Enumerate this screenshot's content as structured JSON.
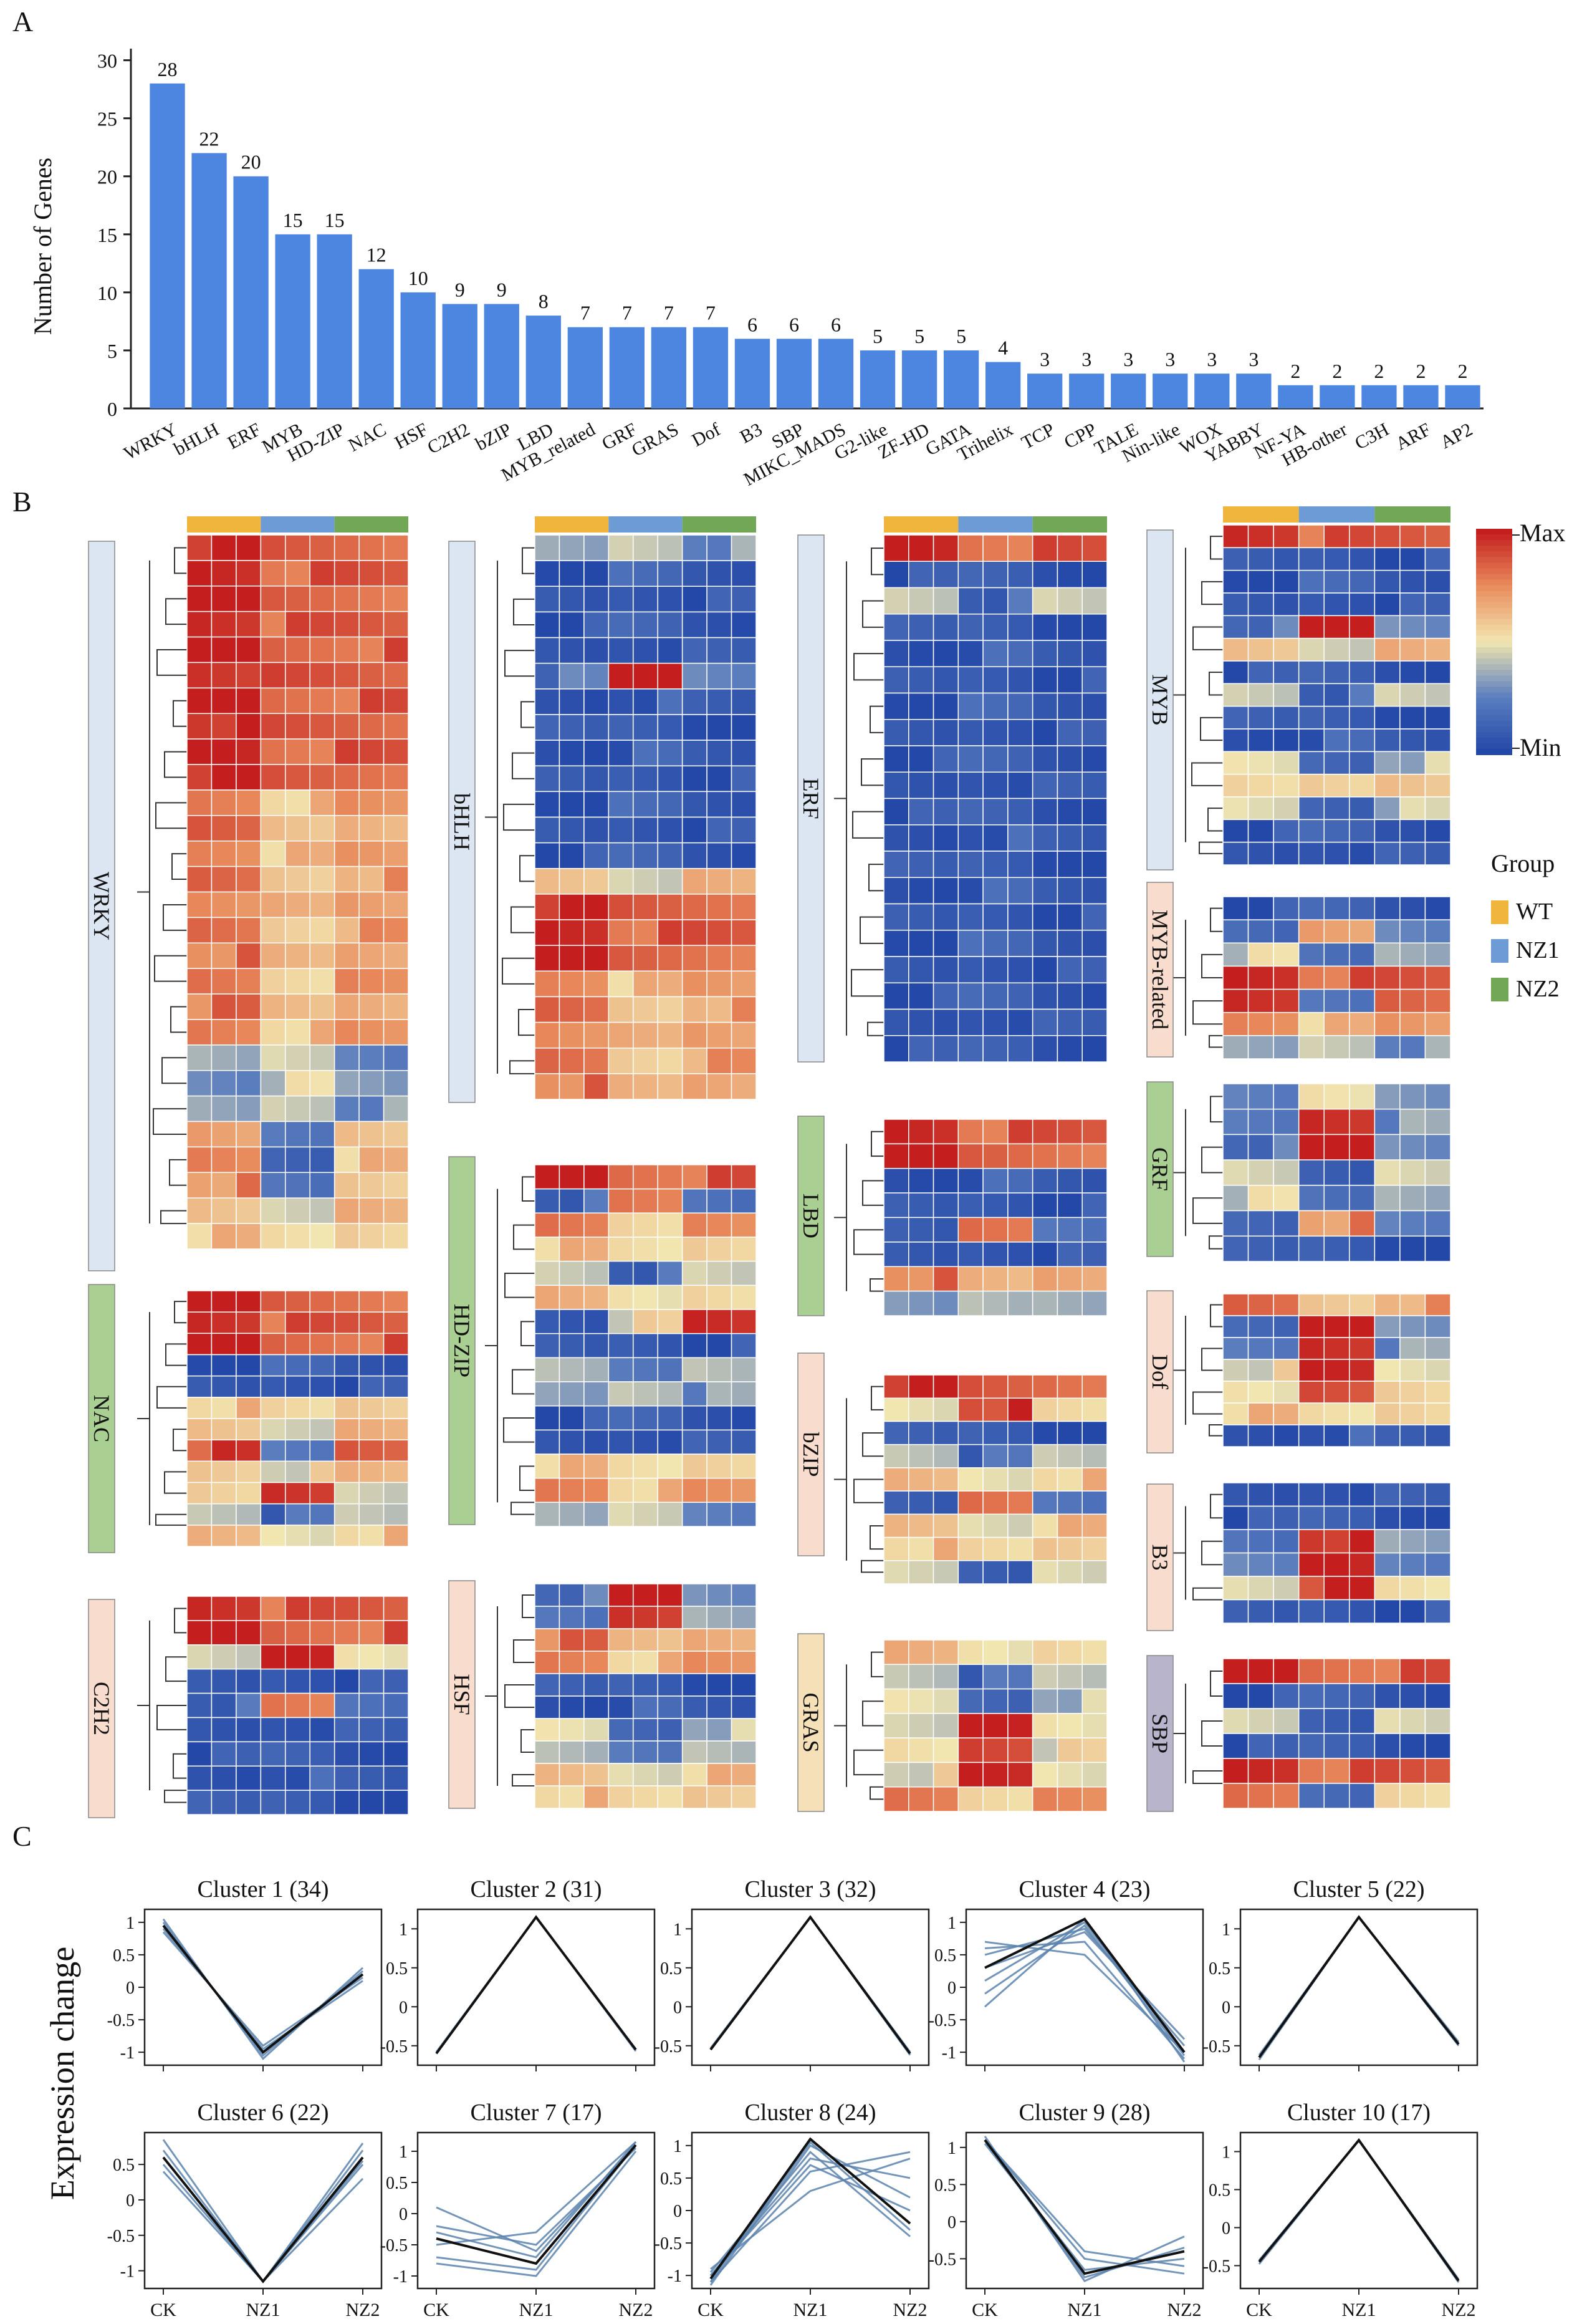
{
  "colors": {
    "bar": "#4d86e0",
    "axis": "#222222",
    "min": "#2448a8",
    "low": "#5c7fbf",
    "mid": "#f2e6b0",
    "high": "#e98c5d",
    "max": "#c41e1e",
    "wt": "#f0b53c",
    "nz1": "#6d9bd6",
    "nz2": "#72a855",
    "panel_gold": "#f6c98e",
    "label_blue": "#dce6f3",
    "label_green": "#a9cf93",
    "label_salmon": "#f8dccd",
    "label_tan": "#f5e0b8",
    "label_purple": "#b7b4cc",
    "trace": "#5a83ad",
    "centroid": "#111111"
  },
  "panels": {
    "a": "A",
    "b": "B",
    "c": "C"
  },
  "chart_data": [
    {
      "type": "bar",
      "title": "",
      "ylabel": "Number of Genes",
      "xlabel": "",
      "ylim": [
        0,
        31
      ],
      "yticks": [
        0,
        5,
        10,
        15,
        20,
        25,
        30
      ],
      "categories": [
        "WRKY",
        "bHLH",
        "ERF",
        "MYB",
        "HD-ZIP",
        "NAC",
        "HSF",
        "C2H2",
        "bZIP",
        "LBD",
        "MYB_related",
        "GRF",
        "GRAS",
        "Dof",
        "B3",
        "SBP",
        "MIKC_MADS",
        "G2-like",
        "ZF-HD",
        "GATA",
        "Trihelix",
        "TCP",
        "CPP",
        "TALE",
        "Nin-like",
        "WOX",
        "YABBY",
        "NF-YA",
        "HB-other",
        "C3H",
        "ARF",
        "AP2"
      ],
      "values": [
        28,
        22,
        20,
        15,
        15,
        12,
        10,
        9,
        9,
        8,
        7,
        7,
        7,
        7,
        6,
        6,
        6,
        5,
        5,
        5,
        4,
        3,
        3,
        3,
        3,
        3,
        3,
        2,
        2,
        2,
        2,
        2
      ]
    },
    {
      "type": "heatmap",
      "scale_labels": {
        "max": "Max",
        "min": "Min"
      },
      "group_legend_title": "Group",
      "groups": [
        "WT",
        "NZ1",
        "NZ2"
      ],
      "families": [
        "WRKY",
        "bHLH",
        "ERF",
        "MYB",
        "MYB-related",
        "NAC",
        "HD-ZIP",
        "LBD",
        "GRF",
        "bZIP",
        "Dof",
        "B3",
        "C2H2",
        "HSF",
        "GRAS",
        "SBP"
      ],
      "value_scale": [
        0,
        1
      ],
      "rows_per_family": [
        28,
        22,
        20,
        15,
        7,
        12,
        15,
        8,
        7,
        9,
        7,
        6,
        9,
        10,
        7,
        6
      ],
      "patterns": [
        [
          1.0,
          1.0,
          1.0,
          0.85,
          0.85,
          0.85,
          0.85,
          0.85,
          0.85
        ],
        [
          0.8,
          0.8,
          0.8,
          0.6,
          0.6,
          0.6,
          0.7,
          0.7,
          0.7
        ],
        [
          0.3,
          0.3,
          0.3,
          0.45,
          0.45,
          0.45,
          0.3,
          0.3,
          0.3
        ],
        [
          0.05,
          0.05,
          0.05,
          0.1,
          0.1,
          0.1,
          0.05,
          0.05,
          0.05
        ],
        [
          0.6,
          0.6,
          0.6,
          0.5,
          0.5,
          0.5,
          0.6,
          0.6,
          0.6
        ],
        [
          0.75,
          0.75,
          0.75,
          0.15,
          0.15,
          0.15,
          0.6,
          0.6,
          0.6
        ],
        [
          0.45,
          0.45,
          0.45,
          0.15,
          0.15,
          0.15,
          0.4,
          0.4,
          0.4
        ],
        [
          0.15,
          0.15,
          0.15,
          0.75,
          0.75,
          0.75,
          0.2,
          0.2,
          0.2
        ],
        [
          0.2,
          0.2,
          0.2,
          1.0,
          1.0,
          1.0,
          0.3,
          0.3,
          0.3
        ],
        [
          0.5,
          0.5,
          0.5,
          0.95,
          0.95,
          0.95,
          0.5,
          0.5,
          0.5
        ],
        [
          0.9,
          0.9,
          0.9,
          0.2,
          0.2,
          0.2,
          0.9,
          0.9,
          0.9
        ],
        [
          0.1,
          0.1,
          0.1,
          0.5,
          0.5,
          0.5,
          0.95,
          0.95,
          0.95
        ]
      ],
      "matrices": [
        [
          0,
          0,
          0,
          0,
          0,
          0,
          0,
          0,
          0,
          0,
          1,
          1,
          1,
          1,
          1,
          1,
          1,
          1,
          1,
          1,
          2,
          2,
          2,
          5,
          5,
          5,
          4,
          4
        ],
        [
          2,
          3,
          3,
          3,
          3,
          8,
          3,
          3,
          3,
          3,
          3,
          3,
          3,
          4,
          0,
          0,
          0,
          1,
          1,
          1,
          1,
          1
        ],
        [
          0,
          3,
          6,
          3,
          3,
          3,
          3,
          3,
          3,
          3,
          3,
          3,
          3,
          3,
          3,
          3,
          3,
          3,
          3,
          3
        ],
        [
          0,
          3,
          3,
          3,
          8,
          4,
          3,
          6,
          3,
          3,
          6,
          4,
          6,
          3,
          3
        ],
        [
          3,
          7,
          6,
          0,
          10,
          1,
          2
        ],
        [
          0,
          0,
          0,
          3,
          3,
          4,
          4,
          10,
          4,
          9,
          6,
          4
        ],
        [
          0,
          7,
          1,
          4,
          6,
          4,
          11,
          3,
          6,
          2,
          3,
          3,
          4,
          1,
          2
        ],
        [
          0,
          0,
          3,
          3,
          7,
          3,
          1,
          2
        ],
        [
          2,
          8,
          8,
          6,
          6,
          7,
          3
        ],
        [
          0,
          9,
          3,
          6,
          4,
          7,
          4,
          4,
          6
        ],
        [
          1,
          8,
          8,
          9,
          9,
          4,
          3
        ],
        [
          3,
          3,
          8,
          8,
          9,
          3
        ],
        [
          0,
          0,
          9,
          3,
          7,
          3,
          3,
          3,
          3
        ],
        [
          8,
          8,
          1,
          1,
          3,
          3,
          6,
          6,
          4,
          4
        ],
        [
          4,
          6,
          6,
          9,
          9,
          9,
          1
        ],
        [
          0,
          3,
          6,
          3,
          0,
          5
        ]
      ]
    },
    {
      "type": "line",
      "ylabel": "Expression change",
      "x": [
        "CK",
        "NZ1",
        "NZ2"
      ],
      "series": [
        {
          "name": "Cluster 1 (34)",
          "yticks": [
            1,
            0.5,
            0,
            -0.5,
            -1
          ],
          "ylim": [
            -1.2,
            1.2
          ],
          "centroid": [
            0.95,
            -1.0,
            0.2
          ],
          "traces": [
            [
              1.05,
              -1.1,
              0.3
            ],
            [
              0.9,
              -0.95,
              0.1
            ],
            [
              1.0,
              -1.05,
              0.25
            ],
            [
              0.85,
              -0.9,
              0.15
            ]
          ]
        },
        {
          "name": "Cluster 2 (31)",
          "yticks": [
            1,
            0.5,
            0,
            -0.5
          ],
          "ylim": [
            -0.75,
            1.25
          ],
          "centroid": [
            -0.6,
            1.15,
            -0.55
          ],
          "traces": [
            [
              -0.58,
              1.15,
              -0.57
            ],
            [
              -0.6,
              1.15,
              -0.55
            ]
          ]
        },
        {
          "name": "Cluster 3 (32)",
          "yticks": [
            1,
            0.5,
            0,
            -0.5
          ],
          "ylim": [
            -0.75,
            1.25
          ],
          "centroid": [
            -0.55,
            1.15,
            -0.6
          ],
          "traces": [
            [
              -0.55,
              1.15,
              -0.62
            ],
            [
              -0.53,
              1.15,
              -0.58
            ]
          ]
        },
        {
          "name": "Cluster 4 (23)",
          "yticks": [
            1,
            0.5,
            0,
            -0.5,
            -1
          ],
          "ylim": [
            -1.2,
            1.2
          ],
          "centroid": [
            0.3,
            1.05,
            -1.0
          ],
          "traces": [
            [
              0.7,
              0.5,
              -1.0
            ],
            [
              0.6,
              0.7,
              -1.1
            ],
            [
              0.5,
              0.9,
              -0.9
            ],
            [
              0.1,
              1.0,
              -1.0
            ],
            [
              -0.3,
              1.05,
              -1.15
            ],
            [
              0.3,
              0.85,
              -0.8
            ],
            [
              -0.1,
              0.95,
              -1.05
            ]
          ]
        },
        {
          "name": "Cluster 5 (22)",
          "yticks": [
            1,
            0.5,
            0,
            -0.5
          ],
          "ylim": [
            -0.75,
            1.25
          ],
          "centroid": [
            -0.65,
            1.15,
            -0.48
          ],
          "traces": [
            [
              -0.68,
              1.15,
              -0.45
            ],
            [
              -0.62,
              1.15,
              -0.5
            ]
          ]
        },
        {
          "name": "Cluster 6 (22)",
          "yticks": [
            0.5,
            0,
            -0.5,
            -1
          ],
          "ylim": [
            -1.25,
            0.95
          ],
          "centroid": [
            0.6,
            -1.15,
            0.6
          ],
          "traces": [
            [
              0.85,
              -1.15,
              0.8
            ],
            [
              0.7,
              -1.15,
              0.7
            ],
            [
              0.5,
              -1.15,
              0.5
            ],
            [
              0.4,
              -1.15,
              0.3
            ],
            [
              0.6,
              -1.15,
              0.55
            ]
          ]
        },
        {
          "name": "Cluster 7 (17)",
          "yticks": [
            1,
            0.5,
            0,
            -0.5,
            -1
          ],
          "ylim": [
            -1.2,
            1.3
          ],
          "centroid": [
            -0.4,
            -0.8,
            1.1
          ],
          "traces": [
            [
              0.1,
              -0.6,
              1.1
            ],
            [
              -0.2,
              -0.5,
              1.05
            ],
            [
              -0.5,
              -0.3,
              1.15
            ],
            [
              -0.7,
              -0.9,
              1.1
            ],
            [
              -0.8,
              -1.0,
              1.0
            ],
            [
              -0.3,
              -0.7,
              1.15
            ]
          ]
        },
        {
          "name": "Cluster 8 (24)",
          "yticks": [
            1,
            0.5,
            0,
            -0.5,
            -1
          ],
          "ylim": [
            -1.2,
            1.2
          ],
          "centroid": [
            -1.05,
            1.1,
            -0.2
          ],
          "traces": [
            [
              -1.1,
              0.6,
              0.9
            ],
            [
              -0.9,
              0.3,
              0.8
            ],
            [
              -1.0,
              0.8,
              0.5
            ],
            [
              -1.15,
              1.0,
              0.2
            ],
            [
              -0.95,
              0.9,
              -0.4
            ],
            [
              -1.0,
              0.7,
              0.0
            ],
            [
              -1.1,
              1.05,
              -0.3
            ]
          ]
        },
        {
          "name": "Cluster 9 (28)",
          "yticks": [
            1,
            0.5,
            0,
            -0.5
          ],
          "ylim": [
            -0.9,
            1.2
          ],
          "centroid": [
            1.1,
            -0.7,
            -0.4
          ],
          "traces": [
            [
              1.15,
              -0.8,
              -0.2
            ],
            [
              1.1,
              -0.5,
              -0.7
            ],
            [
              1.05,
              -0.65,
              -0.5
            ],
            [
              1.1,
              -0.4,
              -0.6
            ],
            [
              1.1,
              -0.75,
              -0.35
            ]
          ]
        },
        {
          "name": "Cluster 10 (17)",
          "yticks": [
            1,
            0.5,
            0,
            -0.5
          ],
          "ylim": [
            -0.8,
            1.25
          ],
          "centroid": [
            -0.45,
            1.15,
            -0.7
          ],
          "traces": [
            [
              -0.48,
              1.15,
              -0.72
            ],
            [
              -0.43,
              1.15,
              -0.68
            ]
          ]
        }
      ]
    }
  ]
}
